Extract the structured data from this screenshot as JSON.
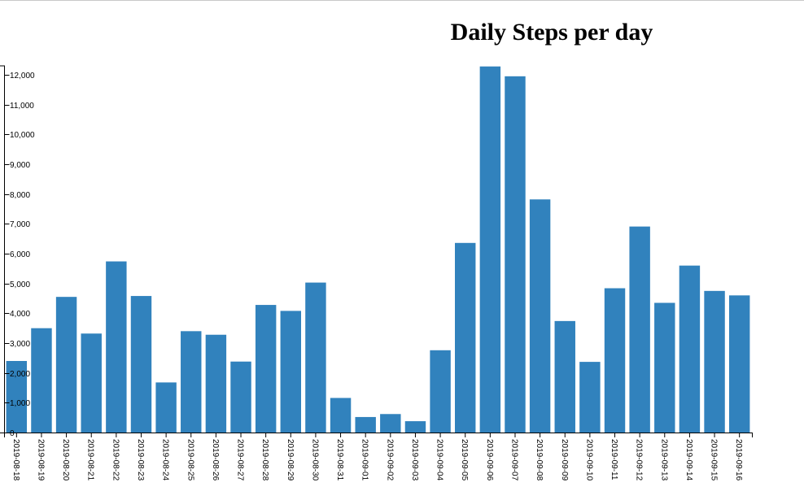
{
  "chart_data": {
    "type": "bar",
    "title": "Daily Steps per day",
    "xlabel": "",
    "ylabel": "",
    "categories": [
      "2019-08-18",
      "2019-08-19",
      "2019-08-20",
      "2019-08-21",
      "2019-08-22",
      "2019-08-23",
      "2019-08-24",
      "2019-08-25",
      "2019-08-26",
      "2019-08-27",
      "2019-08-28",
      "2019-08-29",
      "2019-08-30",
      "2019-08-31",
      "2019-09-01",
      "2019-09-02",
      "2019-09-03",
      "2019-09-04",
      "2019-09-05",
      "2019-09-06",
      "2019-09-07",
      "2019-09-08",
      "2019-09-09",
      "2019-09-10",
      "2019-09-11",
      "2019-09-12",
      "2019-09-13",
      "2019-09-14",
      "2019-09-15",
      "2019-09-16"
    ],
    "values": [
      2400,
      3500,
      4550,
      3320,
      5740,
      4580,
      1680,
      3400,
      3280,
      2380,
      4280,
      4080,
      5030,
      1160,
      520,
      620,
      380,
      2760,
      6360,
      12280,
      11950,
      7820,
      3740,
      2370,
      4840,
      6910,
      4350,
      5600,
      4750,
      4600
    ],
    "ylim": [
      0,
      12300
    ],
    "yticks": [
      0,
      1000,
      2000,
      3000,
      4000,
      5000,
      6000,
      7000,
      8000,
      9000,
      10000,
      11000,
      12000
    ],
    "ytick_labels": [
      "0",
      "1,000",
      "2,000",
      "3,000",
      "4,000",
      "5,000",
      "6,000",
      "7,000",
      "8,000",
      "9,000",
      "10,000",
      "11,000",
      "12,000"
    ],
    "bar_color": "#3182bd",
    "grid": false,
    "legend": "none"
  }
}
